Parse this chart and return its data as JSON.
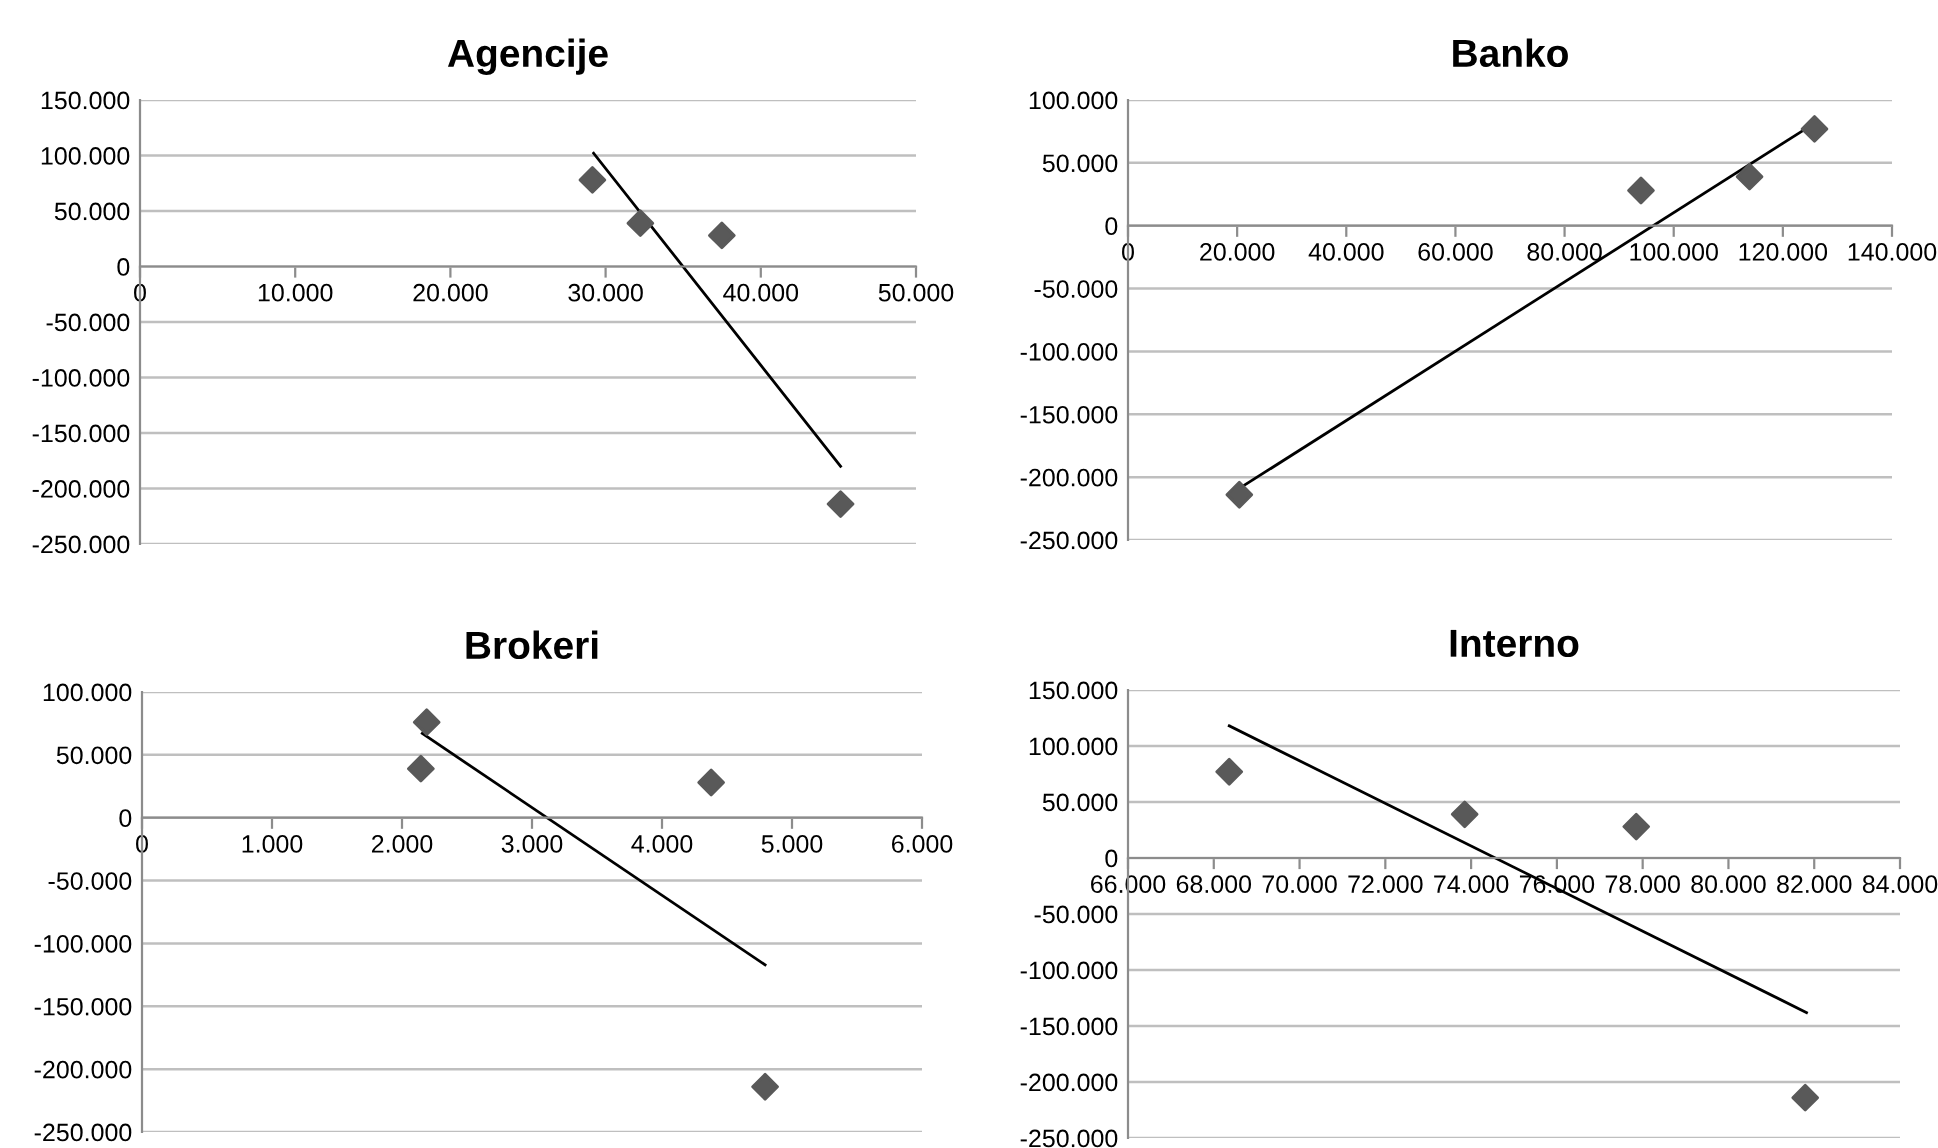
{
  "chart_data": [
    {
      "type": "scatter",
      "title": "Agencije",
      "grid": "y",
      "xlim": [
        0,
        50000
      ],
      "xticks": [
        {
          "value": 0,
          "label": "0"
        },
        {
          "value": 10000,
          "label": "10.000"
        },
        {
          "value": 20000,
          "label": "20.000"
        },
        {
          "value": 30000,
          "label": "30.000"
        },
        {
          "value": 40000,
          "label": "40.000"
        },
        {
          "value": 50000,
          "label": "50.000"
        }
      ],
      "ylim": [
        -250000,
        150000
      ],
      "yticks": [
        {
          "value": -250000,
          "label": "-250.000"
        },
        {
          "value": -200000,
          "label": "-200.000"
        },
        {
          "value": -150000,
          "label": "-150.000"
        },
        {
          "value": -100000,
          "label": "-100.000"
        },
        {
          "value": -50000,
          "label": "-50.000"
        },
        {
          "value": 0,
          "label": "0"
        },
        {
          "value": 50000,
          "label": "50.000"
        },
        {
          "value": 100000,
          "label": "100.000"
        },
        {
          "value": 150000,
          "label": "150.000"
        }
      ],
      "series": [
        {
          "marker": "diamond",
          "color": "#595959",
          "x": [
            29150,
            32240,
            37490,
            45140
          ],
          "values": [
            78000,
            39000,
            28000,
            -214000
          ]
        },
        {
          "type": "line",
          "marker": "none",
          "color": "#000000",
          "x": [
            29230,
            45140
          ],
          "values": [
            102000,
            -180000
          ]
        }
      ]
    },
    {
      "type": "scatter",
      "title": "Banko",
      "grid": "y",
      "xlim": [
        0,
        140000
      ],
      "xticks": [
        {
          "value": 0,
          "label": "0"
        },
        {
          "value": 20000,
          "label": "20.000"
        },
        {
          "value": 40000,
          "label": "40.000"
        },
        {
          "value": 60000,
          "label": "60.000"
        },
        {
          "value": 80000,
          "label": "80.000"
        },
        {
          "value": 100000,
          "label": "100.000"
        },
        {
          "value": 120000,
          "label": "120.000"
        },
        {
          "value": 140000,
          "label": "140.000"
        }
      ],
      "ylim": [
        -250000,
        100000
      ],
      "yticks": [
        {
          "value": -250000,
          "label": "-250.000"
        },
        {
          "value": -200000,
          "label": "-200.000"
        },
        {
          "value": -150000,
          "label": "-150.000"
        },
        {
          "value": -100000,
          "label": "-100.000"
        },
        {
          "value": -50000,
          "label": "-50.000"
        },
        {
          "value": 0,
          "label": "0"
        },
        {
          "value": 50000,
          "label": "50.000"
        },
        {
          "value": 100000,
          "label": "100.000"
        }
      ],
      "series": [
        {
          "marker": "diamond",
          "color": "#595959",
          "x": [
            20400,
            94000,
            113900,
            125800
          ],
          "values": [
            -214000,
            28000,
            39000,
            77000
          ]
        },
        {
          "type": "line",
          "marker": "none",
          "color": "#000000",
          "x": [
            20400,
            124900
          ],
          "values": [
            -209000,
            79000
          ]
        }
      ]
    },
    {
      "type": "scatter",
      "title": "Brokeri",
      "grid": "y",
      "xlim": [
        0,
        6000
      ],
      "xticks": [
        {
          "value": 0,
          "label": "0"
        },
        {
          "value": 1000,
          "label": "1.000"
        },
        {
          "value": 2000,
          "label": "2.000"
        },
        {
          "value": 3000,
          "label": "3.000"
        },
        {
          "value": 4000,
          "label": "4.000"
        },
        {
          "value": 5000,
          "label": "5.000"
        },
        {
          "value": 6000,
          "label": "6.000"
        }
      ],
      "ylim": [
        -250000,
        100000
      ],
      "yticks": [
        {
          "value": -250000,
          "label": "-250.000"
        },
        {
          "value": -200000,
          "label": "-200.000"
        },
        {
          "value": -150000,
          "label": "-150.000"
        },
        {
          "value": -100000,
          "label": "-100.000"
        },
        {
          "value": -50000,
          "label": "-50.000"
        },
        {
          "value": 0,
          "label": "0"
        },
        {
          "value": 50000,
          "label": "50.000"
        },
        {
          "value": 100000,
          "label": "100.000"
        }
      ],
      "series": [
        {
          "marker": "diamond",
          "color": "#595959",
          "x": [
            2190,
            2145,
            4378,
            4793
          ],
          "values": [
            76000,
            39000,
            28000,
            -214000
          ]
        },
        {
          "type": "line",
          "marker": "none",
          "color": "#000000",
          "x": [
            2156,
            4793
          ],
          "values": [
            67000,
            -117000
          ]
        }
      ]
    },
    {
      "type": "scatter",
      "title": "Interno",
      "grid": "y",
      "xlim": [
        66000,
        84000
      ],
      "xticks": [
        {
          "value": 66000,
          "label": "66.000"
        },
        {
          "value": 68000,
          "label": "68.000"
        },
        {
          "value": 70000,
          "label": "70.000"
        },
        {
          "value": 72000,
          "label": "72.000"
        },
        {
          "value": 74000,
          "label": "74.000"
        },
        {
          "value": 76000,
          "label": "76.000"
        },
        {
          "value": 78000,
          "label": "78.000"
        },
        {
          "value": 80000,
          "label": "80.000"
        },
        {
          "value": 82000,
          "label": "82.000"
        },
        {
          "value": 84000,
          "label": "84.000"
        }
      ],
      "ylim": [
        -250000,
        150000
      ],
      "yticks": [
        {
          "value": -250000,
          "label": "-250.000"
        },
        {
          "value": -200000,
          "label": "-200.000"
        },
        {
          "value": -150000,
          "label": "-150.000"
        },
        {
          "value": -100000,
          "label": "-100.000"
        },
        {
          "value": -50000,
          "label": "-50.000"
        },
        {
          "value": 0,
          "label": "0"
        },
        {
          "value": 50000,
          "label": "50.000"
        },
        {
          "value": 100000,
          "label": "100.000"
        },
        {
          "value": 150000,
          "label": "150.000"
        }
      ],
      "series": [
        {
          "marker": "diamond",
          "color": "#595959",
          "x": [
            68360,
            73850,
            77850,
            81790
          ],
          "values": [
            77000,
            39000,
            28000,
            -214000
          ]
        },
        {
          "type": "line",
          "marker": "none",
          "color": "#000000",
          "x": [
            68360,
            81820
          ],
          "values": [
            118000,
            -138000
          ]
        }
      ]
    }
  ]
}
